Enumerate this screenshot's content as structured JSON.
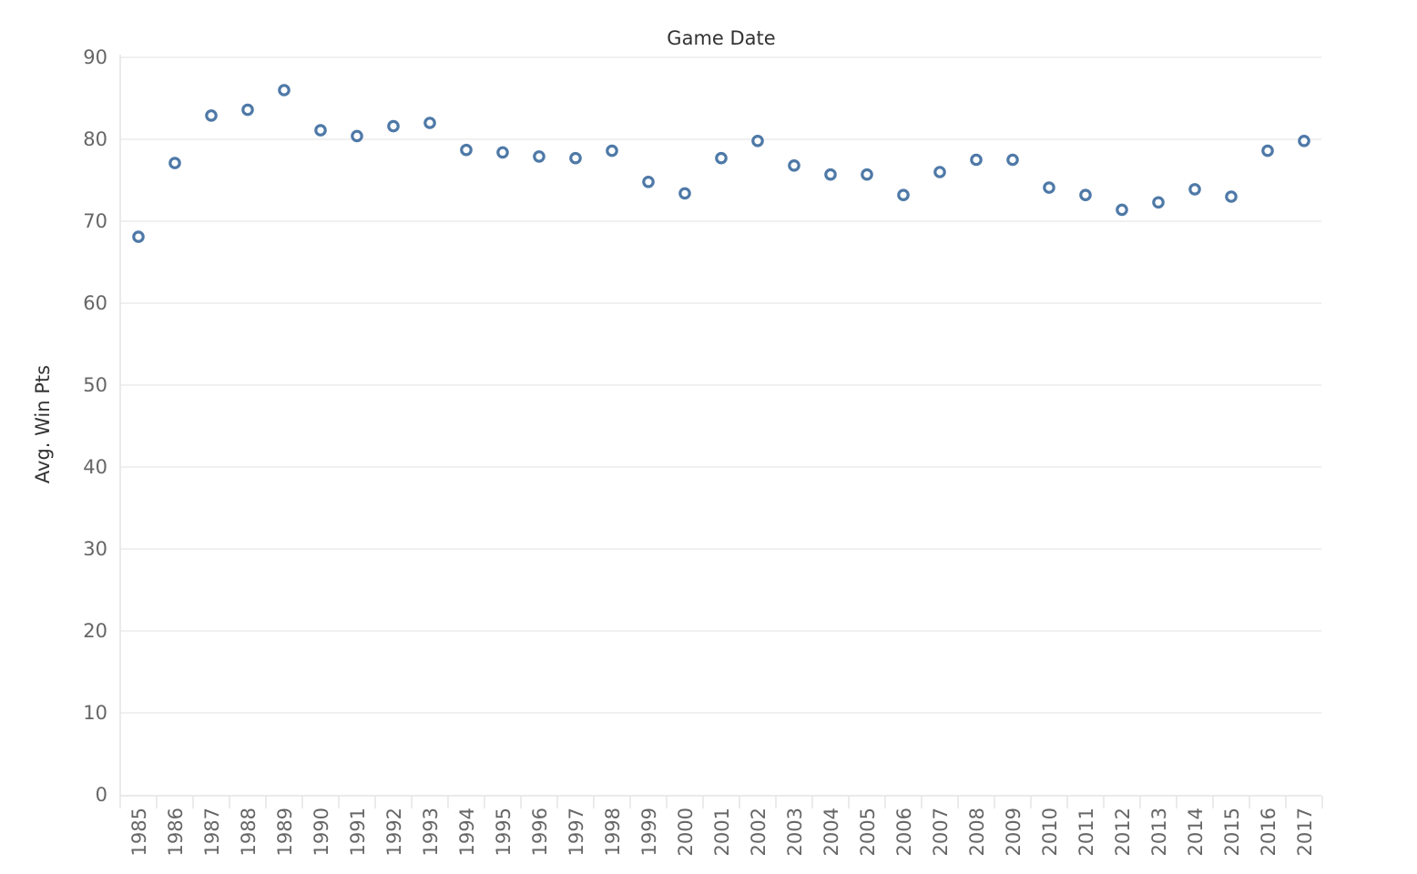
{
  "chart_data": {
    "type": "scatter",
    "title": "Game Date",
    "xlabel": "",
    "ylabel": "Avg. Win Pts",
    "ylim": [
      0,
      90
    ],
    "yticks": [
      "0",
      "10",
      "20",
      "30",
      "40",
      "50",
      "60",
      "70",
      "80",
      "90"
    ],
    "grid": true,
    "marker": "open-circle",
    "color": "#4e79a7",
    "categories": [
      "1985",
      "1986",
      "1987",
      "1988",
      "1989",
      "1990",
      "1991",
      "1992",
      "1993",
      "1994",
      "1995",
      "1996",
      "1997",
      "1998",
      "1999",
      "2000",
      "2001",
      "2002",
      "2003",
      "2004",
      "2005",
      "2006",
      "2007",
      "2008",
      "2009",
      "2010",
      "2011",
      "2012",
      "2013",
      "2014",
      "2015",
      "2016",
      "2017"
    ],
    "values": [
      68.1,
      77.1,
      82.9,
      83.6,
      86.0,
      81.1,
      80.4,
      81.6,
      82.0,
      78.7,
      78.4,
      77.9,
      77.7,
      78.6,
      74.8,
      73.4,
      77.7,
      79.8,
      76.8,
      75.7,
      75.7,
      73.2,
      76.0,
      77.5,
      77.5,
      74.1,
      73.2,
      71.4,
      72.3,
      73.9,
      73.0,
      78.6,
      79.8
    ]
  }
}
